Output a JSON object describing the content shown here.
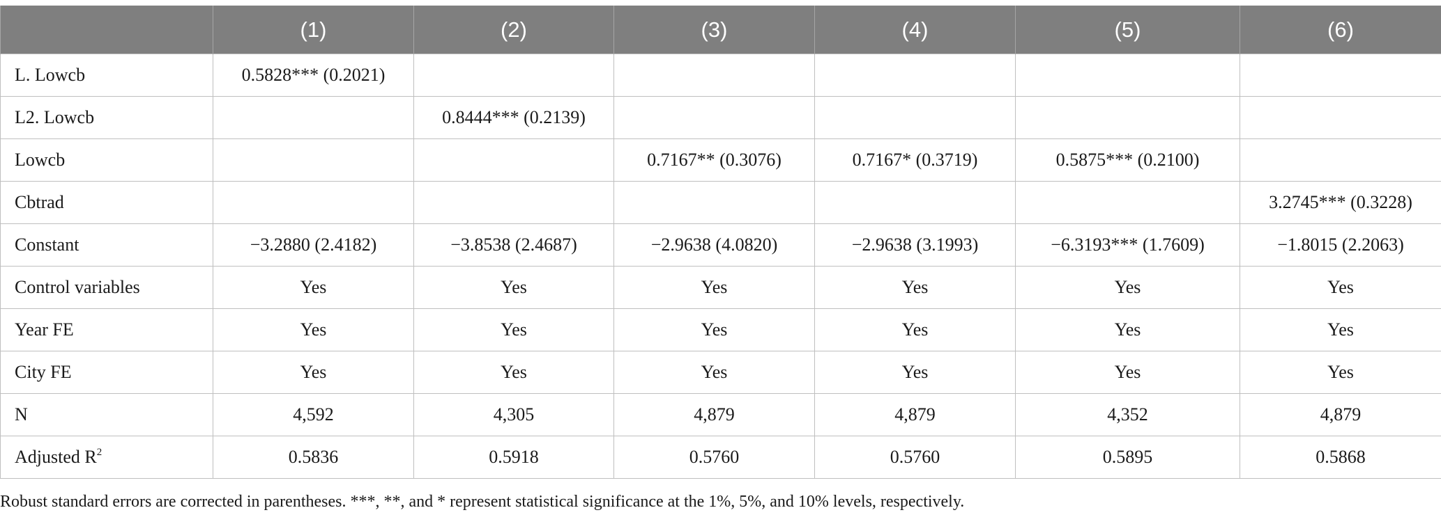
{
  "table": {
    "headers": [
      "",
      "(1)",
      "(2)",
      "(3)",
      "(4)",
      "(5)",
      "(6)"
    ],
    "rows": [
      {
        "label": "L. Lowcb",
        "cells": [
          "0.5828*** (0.2021)",
          "",
          "",
          "",
          "",
          ""
        ]
      },
      {
        "label": "L2. Lowcb",
        "cells": [
          "",
          "0.8444*** (0.2139)",
          "",
          "",
          "",
          ""
        ]
      },
      {
        "label": "Lowcb",
        "cells": [
          "",
          "",
          "0.7167** (0.3076)",
          "0.7167* (0.3719)",
          "0.5875*** (0.2100)",
          ""
        ]
      },
      {
        "label": "Cbtrad",
        "cells": [
          "",
          "",
          "",
          "",
          "",
          "3.2745*** (0.3228)"
        ]
      },
      {
        "label": "Constant",
        "cells": [
          "−3.2880 (2.4182)",
          "−3.8538 (2.4687)",
          "−2.9638 (4.0820)",
          "−2.9638 (3.1993)",
          "−6.3193*** (1.7609)",
          "−1.8015 (2.2063)"
        ]
      },
      {
        "label": "Control variables",
        "cells": [
          "Yes",
          "Yes",
          "Yes",
          "Yes",
          "Yes",
          "Yes"
        ]
      },
      {
        "label": "Year FE",
        "cells": [
          "Yes",
          "Yes",
          "Yes",
          "Yes",
          "Yes",
          "Yes"
        ]
      },
      {
        "label": "City FE",
        "cells": [
          "Yes",
          "Yes",
          "Yes",
          "Yes",
          "Yes",
          "Yes"
        ]
      },
      {
        "label": "N",
        "cells": [
          "4,592",
          "4,305",
          "4,879",
          "4,879",
          "4,352",
          "4,879"
        ]
      },
      {
        "label": "Adjusted R",
        "label_sup": "2",
        "cells": [
          "0.5836",
          "0.5918",
          "0.5760",
          "0.5760",
          "0.5895",
          "0.5868"
        ]
      }
    ]
  },
  "note": "Robust standard errors are corrected in parentheses. ***, **, and * represent statistical significance at the 1%, 5%, and 10% levels, respectively.",
  "colors": {
    "header_bg": "#7f7f7f",
    "header_text": "#ffffff",
    "grid": "#bfbfbf"
  }
}
